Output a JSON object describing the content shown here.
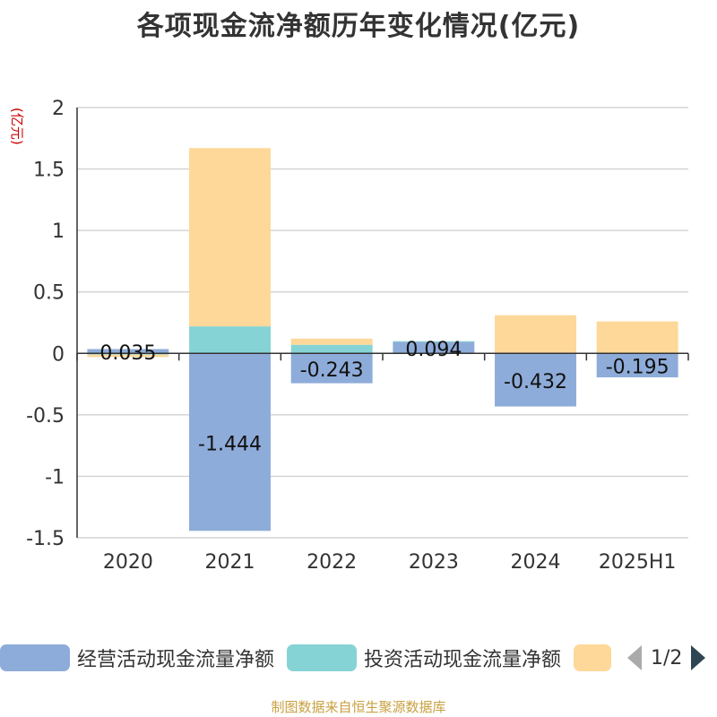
{
  "title": "各项现金流净额历年变化情况(亿元)",
  "unit_label": "(亿元)",
  "source": "制图数据来自恒生聚源数据库",
  "legend": {
    "items": [
      {
        "label": "经营活动现金流量净额",
        "color": "#8eacd9"
      },
      {
        "label": "投资活动现金流量净额",
        "color": "#86d3d6"
      },
      {
        "label": "",
        "color": "#fdd899"
      }
    ],
    "page_indicator": "1/2"
  },
  "chart_data": {
    "type": "bar",
    "stacked": true,
    "categories": [
      "2020",
      "2021",
      "2022",
      "2023",
      "2024",
      "2025H1"
    ],
    "series": [
      {
        "name": "经营活动现金流量净额",
        "color": "#8eacd9",
        "values": [
          0.035,
          -1.444,
          -0.243,
          0.094,
          -0.432,
          -0.195
        ]
      },
      {
        "name": "投资活动现金流量净额",
        "color": "#86d3d6",
        "values": [
          -0.01,
          0.22,
          0.07,
          0.005,
          0.0,
          0.0
        ]
      },
      {
        "name": "",
        "color": "#fdd899",
        "values": [
          -0.02,
          1.45,
          0.05,
          0.0,
          0.31,
          0.26
        ]
      }
    ],
    "data_labels": [
      "0.035",
      "-1.444",
      "-0.243",
      "0.094",
      "-0.432",
      "-0.195"
    ],
    "y_ticks": [
      "2",
      "1.5",
      "1",
      "0.5",
      "0",
      "-0.5",
      "-1",
      "-1.5"
    ],
    "ylim": [
      -1.5,
      2
    ],
    "grid": true
  }
}
